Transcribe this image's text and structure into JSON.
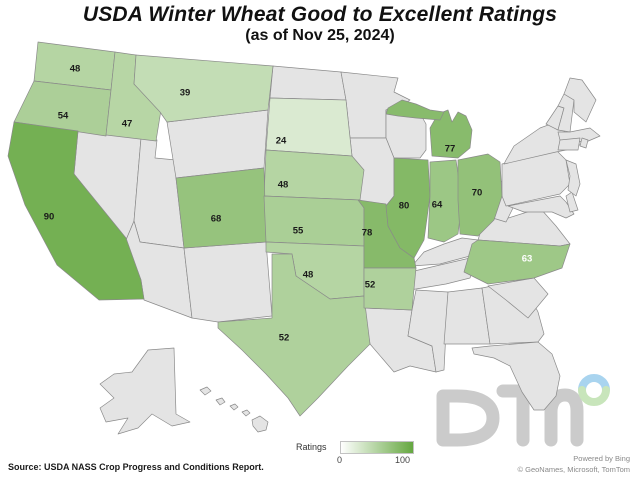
{
  "title": "USDA Winter Wheat Good to Excellent Ratings",
  "subtitle": "(as of Nov 25, 2024)",
  "source": "Source: USDA NASS Crop Progress and Conditions Report.",
  "attribution": {
    "line1": "Powered by Bing",
    "line2": "© GeoNames, Microsoft, TomTom"
  },
  "brand": "DTN",
  "legend": {
    "label": "Ratings",
    "min": "0",
    "max": "100"
  },
  "colors": {
    "scale_min": "#FFFFFF",
    "scale_max": "#65A740",
    "state_default": "#E4E4E4",
    "border": "#8A8A8A",
    "label_dark": "#1A1A1A",
    "label_light": "#FFFFFF",
    "watermark": "#CBCBCB",
    "ring_top": "#A9D4EF",
    "ring_bottom": "#C8E5BB"
  },
  "chart_data": {
    "type": "choropleth",
    "title": "USDA Winter Wheat Good to Excellent Ratings",
    "subtitle": "(as of Nov 25, 2024)",
    "unit": "percent rated good to excellent",
    "legend": {
      "label": "Ratings",
      "min": 0,
      "max": 100
    },
    "states": [
      {
        "state": "Washington",
        "abbr": "WA",
        "value": 48
      },
      {
        "state": "Oregon",
        "abbr": "OR",
        "value": 54
      },
      {
        "state": "California",
        "abbr": "CA",
        "value": 90
      },
      {
        "state": "Idaho",
        "abbr": "ID",
        "value": 47
      },
      {
        "state": "Montana",
        "abbr": "MT",
        "value": 39
      },
      {
        "state": "South Dakota",
        "abbr": "SD",
        "value": 24
      },
      {
        "state": "Nebraska",
        "abbr": "NE",
        "value": 48
      },
      {
        "state": "Colorado",
        "abbr": "CO",
        "value": 68
      },
      {
        "state": "Kansas",
        "abbr": "KS",
        "value": 55
      },
      {
        "state": "Oklahoma",
        "abbr": "OK",
        "value": 48
      },
      {
        "state": "Texas",
        "abbr": "TX",
        "value": 52
      },
      {
        "state": "Missouri",
        "abbr": "MO",
        "value": 78
      },
      {
        "state": "Arkansas",
        "abbr": "AR",
        "value": 52
      },
      {
        "state": "Illinois",
        "abbr": "IL",
        "value": 80
      },
      {
        "state": "Indiana",
        "abbr": "IN",
        "value": 64
      },
      {
        "state": "Ohio",
        "abbr": "OH",
        "value": 70
      },
      {
        "state": "Michigan",
        "abbr": "MI",
        "value": 77
      },
      {
        "state": "North Carolina",
        "abbr": "NC",
        "value": 63
      }
    ]
  }
}
